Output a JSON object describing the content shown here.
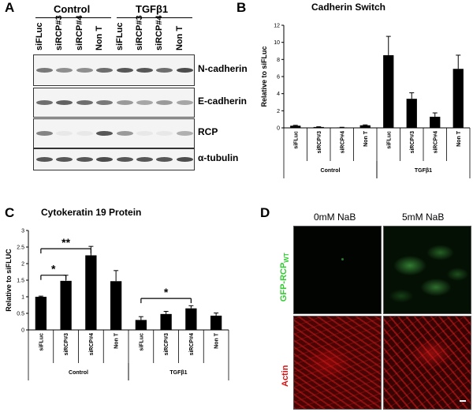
{
  "panel_a": {
    "letter": "A",
    "group_labels": [
      "Control",
      "TGFβ1"
    ],
    "lane_labels": [
      "siFLuc",
      "siRCP#3",
      "siRCP#4",
      "Non T",
      "siFLuc",
      "siRCP#3",
      "siRCP#4",
      "Non T"
    ],
    "blots": [
      {
        "label": "N-cadherin",
        "intensities": [
          0.55,
          0.45,
          0.45,
          0.6,
          0.7,
          0.7,
          0.6,
          0.75
        ]
      },
      {
        "label": "E-cadherin",
        "intensities": [
          0.6,
          0.65,
          0.6,
          0.55,
          0.4,
          0.35,
          0.4,
          0.35
        ]
      },
      {
        "label": "RCP",
        "intensities": [
          0.5,
          0.05,
          0.05,
          0.7,
          0.4,
          0.05,
          0.05,
          0.3
        ]
      },
      {
        "label": "α-tubulin",
        "intensities": [
          0.7,
          0.7,
          0.7,
          0.75,
          0.7,
          0.7,
          0.7,
          0.75
        ]
      }
    ]
  },
  "panel_b": {
    "letter": "B",
    "chart_data": {
      "type": "bar",
      "title": "Cadherin Switch",
      "ylabel": "Relative to siFLuc",
      "ylim": [
        0,
        12
      ],
      "yticks": [
        0,
        2,
        4,
        6,
        8,
        10,
        12
      ],
      "categories": [
        "siFLuc",
        "siRCP#3",
        "siRCP#4",
        "Non T",
        "siFLuc",
        "siRCP#3",
        "siRCP#4",
        "Non T"
      ],
      "groups": [
        {
          "label": "Control",
          "span": [
            0,
            3
          ]
        },
        {
          "label": "TGFβ1",
          "span": [
            4,
            7
          ]
        }
      ],
      "values": [
        0.25,
        0.1,
        0.05,
        0.3,
        8.5,
        3.4,
        1.3,
        6.9
      ],
      "errors": [
        0.05,
        0.03,
        0.02,
        0.05,
        2.2,
        0.7,
        0.45,
        1.6
      ],
      "grid": false
    }
  },
  "panel_c": {
    "letter": "C",
    "chart_data": {
      "type": "bar",
      "title": "Cytokeratin 19 Protein",
      "ylabel": "Relative to siFLUC",
      "ylim": [
        0,
        3
      ],
      "yticks": [
        0,
        0.5,
        1,
        1.5,
        2,
        2.5,
        3
      ],
      "categories": [
        "siFLuc",
        "siRCP#3",
        "siRCP#4",
        "Non T",
        "siFLuc",
        "siRCP#3",
        "siRCP#4",
        "Non T"
      ],
      "groups": [
        {
          "label": "Control",
          "span": [
            0,
            3
          ]
        },
        {
          "label": "TGFβ1",
          "span": [
            4,
            7
          ]
        }
      ],
      "values": [
        1.0,
        1.48,
        2.25,
        1.47,
        0.3,
        0.48,
        0.65,
        0.43
      ],
      "errors": [
        0.02,
        0.17,
        0.27,
        0.32,
        0.1,
        0.08,
        0.08,
        0.08
      ],
      "annotations": [
        {
          "from": 0,
          "to": 1,
          "label": "*",
          "y": 1.65
        },
        {
          "from": 0,
          "to": 2,
          "label": "**",
          "y": 2.45
        },
        {
          "from": 4,
          "to": 6,
          "label": "*",
          "y": 0.95
        }
      ],
      "grid": false
    }
  },
  "panel_d": {
    "letter": "D",
    "column_titles": [
      "0mM NaB",
      "5mM NaB"
    ],
    "row_labels": [
      {
        "main": "GFP-RCP",
        "sub": "WT",
        "color": "#33cc33"
      },
      {
        "main": "Actin",
        "sub": "",
        "color": "#dd1111"
      }
    ]
  }
}
